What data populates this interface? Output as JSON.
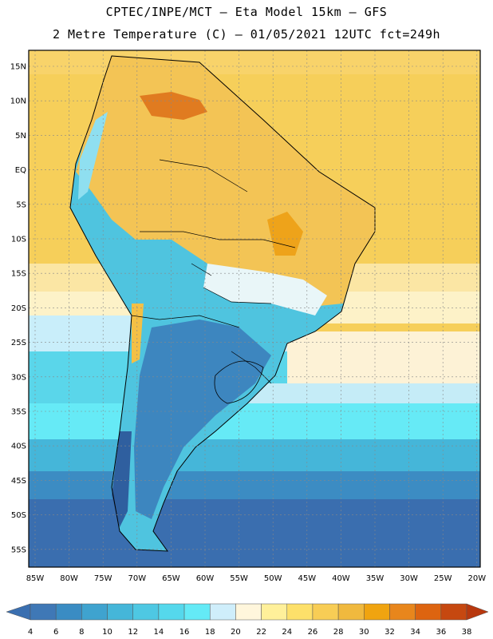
{
  "header": {
    "line1": "CPTEC/INPE/MCT –  Eta Model 15km – GFS",
    "line2": "2 Metre Temperature (C) – 01/05/2021 12UTC fct=249h"
  },
  "axes": {
    "lat_labels": [
      "15N",
      "10N",
      "5N",
      "EQ",
      "5S",
      "10S",
      "15S",
      "20S",
      "25S",
      "30S",
      "35S",
      "40S",
      "45S",
      "50S",
      "55S"
    ],
    "lon_labels": [
      "85W",
      "80W",
      "75W",
      "70W",
      "65W",
      "60W",
      "55W",
      "50W",
      "45W",
      "40W",
      "35W",
      "30W",
      "25W",
      "20W"
    ]
  },
  "colorbar": {
    "ticks": [
      "4",
      "6",
      "8",
      "10",
      "12",
      "14",
      "16",
      "18",
      "20",
      "22",
      "24",
      "26",
      "28",
      "30",
      "32",
      "34",
      "36",
      "38"
    ],
    "low_color": "#3a6fb0",
    "high_color": "#b8380e",
    "colors": [
      "#3f78b6",
      "#3a8cc3",
      "#3fa3cf",
      "#45b6d9",
      "#4ec8e3",
      "#55d8ec",
      "#64eaf6",
      "#cfeefb",
      "#fff6dc",
      "#fff09a",
      "#fde06a",
      "#f8cd55",
      "#f0b93e",
      "#f0a410",
      "#e8861c",
      "#dd6410",
      "#c64810"
    ]
  }
}
